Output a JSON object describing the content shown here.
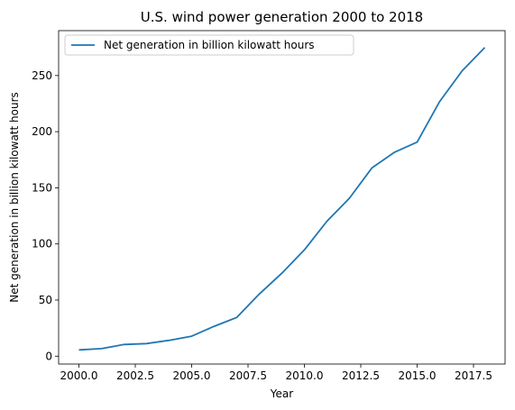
{
  "chart_data": {
    "type": "line",
    "title": "U.S. wind power generation 2000 to 2018",
    "xlabel": "Year",
    "ylabel": "Net generation in billion kilowatt hours",
    "xlim": [
      1999.1,
      2018.9
    ],
    "ylim": [
      -7,
      290
    ],
    "x_ticks": [
      2000.0,
      2002.5,
      2005.0,
      2007.5,
      2010.0,
      2012.5,
      2015.0,
      2017.5
    ],
    "x_tick_labels": [
      "2000.0",
      "2002.5",
      "2005.0",
      "2007.5",
      "2010.0",
      "2012.5",
      "2015.0",
      "2017.5"
    ],
    "y_ticks": [
      0,
      50,
      100,
      150,
      200,
      250
    ],
    "y_tick_labels": [
      "0",
      "50",
      "100",
      "150",
      "200",
      "250"
    ],
    "grid": false,
    "legend_position": "top-left",
    "x": [
      2000,
      2001,
      2002,
      2003,
      2004,
      2005,
      2006,
      2007,
      2008,
      2009,
      2010,
      2011,
      2012,
      2013,
      2014,
      2015,
      2016,
      2017,
      2018
    ],
    "series": [
      {
        "name": "Net generation in billion kilowatt hours",
        "color": "#1f77b4",
        "values": [
          5.6,
          6.7,
          10.4,
          11.2,
          14.1,
          17.8,
          26.6,
          34.5,
          55.4,
          73.9,
          94.7,
          120.2,
          140.8,
          167.8,
          181.7,
          190.7,
          226.9,
          254.3,
          275.0
        ]
      }
    ]
  }
}
